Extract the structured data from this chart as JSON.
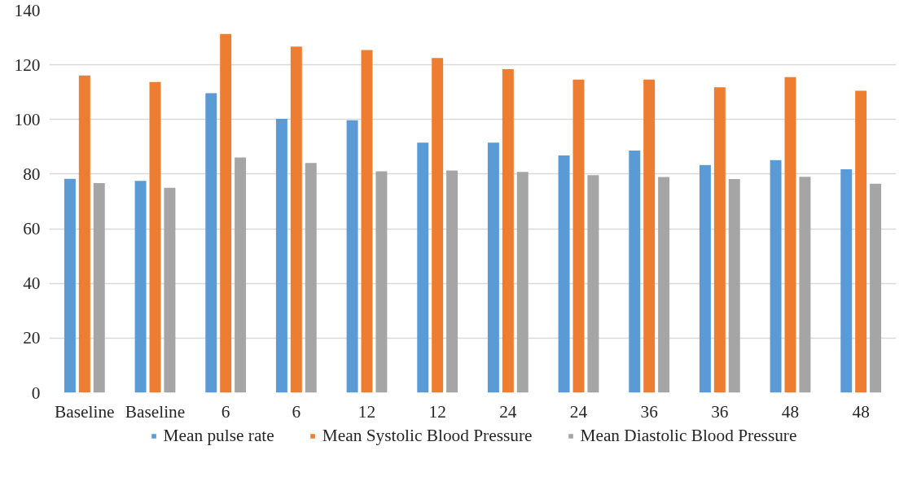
{
  "chart_data": {
    "type": "bar",
    "categories": [
      "Baseline",
      "Baseline",
      "6",
      "6",
      "12",
      "12",
      "24",
      "24",
      "36",
      "36",
      "48",
      "48"
    ],
    "series": [
      {
        "name": "Mean pulse rate",
        "color": "#5b9bd5",
        "values": [
          78.3,
          77.5,
          109.6,
          100.2,
          99.7,
          91.5,
          91.5,
          86.8,
          88.6,
          83.3,
          85.1,
          81.8
        ]
      },
      {
        "name": "Mean Systolic Blood Pressure",
        "color": "#ed7d31",
        "values": [
          116.1,
          113.7,
          131.3,
          126.7,
          125.4,
          122.5,
          118.4,
          114.6,
          114.6,
          111.8,
          115.5,
          110.5
        ]
      },
      {
        "name": "Mean Diastolic Blood Pressure",
        "color": "#a5a5a5",
        "values": [
          76.7,
          75.0,
          86.1,
          84.1,
          81.0,
          81.3,
          80.8,
          79.6,
          78.9,
          78.2,
          79.0,
          76.5
        ]
      }
    ],
    "ylim": [
      0,
      140
    ],
    "yticks": [
      0,
      20,
      40,
      60,
      80,
      100,
      120,
      140
    ],
    "grid": "y",
    "legend": "bottom",
    "marker": "square"
  }
}
